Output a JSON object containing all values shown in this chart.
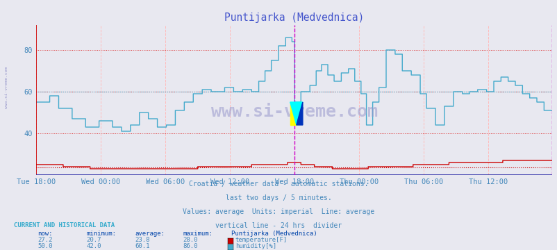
{
  "title": "Puntijarka (Medvednica)",
  "title_color": "#4455cc",
  "background_color": "#e8e8f0",
  "plot_bg_color": "#e8e8f0",
  "grid_color_h": "#dd3333",
  "grid_color_v": "#ffbbbb",
  "x_labels": [
    "Tue 18:00",
    "Wed 00:00",
    "Wed 06:00",
    "Wed 12:00",
    "Wed 18:00",
    "Thu 00:00",
    "Thu 06:00",
    "Thu 12:00"
  ],
  "ylim": [
    20,
    92
  ],
  "y_ticks": [
    40,
    60,
    80
  ],
  "temp_avg": 23.8,
  "temp_color": "#cc0000",
  "hum_color": "#44aacc",
  "hum_avg": 60.1,
  "divider_color": "#cc00cc",
  "watermark_color": "#8888bb",
  "footer_color": "#4488bb",
  "label_color": "#4488bb",
  "current_label_color": "#0044aa",
  "legend_text_color": "#4488bb",
  "n_points": 576,
  "temp_now": 27.2,
  "temp_min": 20.7,
  "temp_avg_val": 23.8,
  "temp_max": 28.0,
  "hum_now": 50.0,
  "hum_min": 42.0,
  "hum_avg_val": 60.1,
  "hum_max": 86.0,
  "divider_idx": 288
}
